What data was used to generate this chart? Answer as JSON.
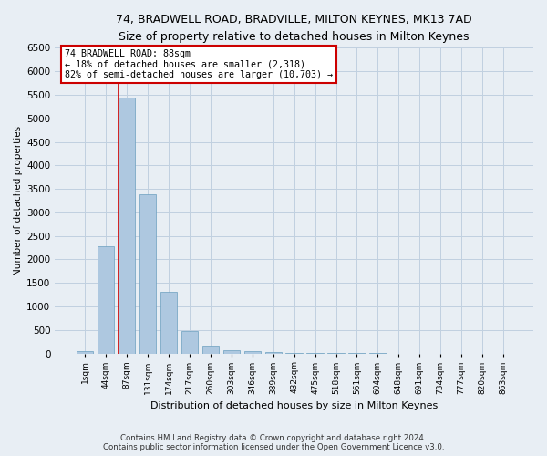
{
  "title": "74, BRADWELL ROAD, BRADVILLE, MILTON KEYNES, MK13 7AD",
  "subtitle": "Size of property relative to detached houses in Milton Keynes",
  "xlabel": "Distribution of detached houses by size in Milton Keynes",
  "ylabel": "Number of detached properties",
  "footer_line1": "Contains HM Land Registry data © Crown copyright and database right 2024.",
  "footer_line2": "Contains public sector information licensed under the Open Government Licence v3.0.",
  "annotation_title": "74 BRADWELL ROAD: 88sqm",
  "annotation_line1": "← 18% of detached houses are smaller (2,318)",
  "annotation_line2": "82% of semi-detached houses are larger (10,703) →",
  "bar_categories": [
    "1sqm",
    "44sqm",
    "87sqm",
    "131sqm",
    "174sqm",
    "217sqm",
    "260sqm",
    "303sqm",
    "346sqm",
    "389sqm",
    "432sqm",
    "475sqm",
    "518sqm",
    "561sqm",
    "604sqm",
    "648sqm",
    "691sqm",
    "734sqm",
    "777sqm",
    "820sqm",
    "863sqm"
  ],
  "bar_values": [
    60,
    2280,
    5450,
    3380,
    1310,
    480,
    160,
    80,
    50,
    30,
    15,
    10,
    5,
    5,
    3,
    2,
    2,
    1,
    1,
    1,
    1
  ],
  "bar_color": "#aec8e0",
  "bar_edge_color": "#6a9fbe",
  "highlight_color": "#cc0000",
  "ylim": [
    0,
    6500
  ],
  "yticks": [
    0,
    500,
    1000,
    1500,
    2000,
    2500,
    3000,
    3500,
    4000,
    4500,
    5000,
    5500,
    6000,
    6500
  ],
  "grid_color": "#c0d0e0",
  "background_color": "#e8eef4",
  "annotation_box_color": "#ffffff",
  "annotation_box_edge": "#cc0000",
  "title_fontsize": 9,
  "subtitle_fontsize": 8.5
}
